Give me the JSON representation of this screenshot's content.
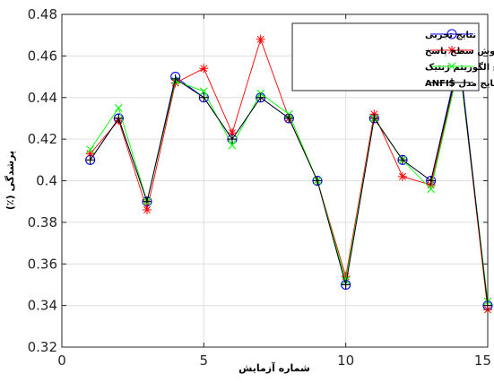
{
  "chart_data": {
    "type": "line",
    "title": "",
    "xlabel": "شماره آزمایش",
    "ylabel": "پرشدگی (٪)",
    "xlim": [
      0,
      15
    ],
    "ylim": [
      0.32,
      0.48
    ],
    "grid": true,
    "legend_position": "top-right",
    "x": [
      1,
      2,
      3,
      4,
      5,
      6,
      7,
      8,
      9,
      10,
      11,
      12,
      13,
      14,
      15
    ],
    "xticks": [
      0,
      5,
      10,
      15
    ],
    "yticks": [
      0.32,
      0.34,
      0.36,
      0.38,
      0.4,
      0.42,
      0.44,
      0.46,
      0.48
    ],
    "xtick_labels": [
      "0",
      "5",
      "10",
      "15"
    ],
    "ytick_labels": [
      "0.32",
      "0.34",
      "0.36",
      "0.38",
      "0.4",
      "0.42",
      "0.44",
      "0.46",
      "0.48"
    ],
    "series": [
      {
        "name": "نتایج تجربی",
        "color": "#0000ff",
        "marker": "circle",
        "values": [
          0.41,
          0.43,
          0.39,
          0.45,
          0.44,
          0.42,
          0.44,
          0.43,
          0.4,
          0.35,
          0.43,
          0.41,
          0.4,
          0.46,
          0.34
        ]
      },
      {
        "name": "نتایج روش سطح پاسخ",
        "color": "#ff0000",
        "marker": "asterisk",
        "values": [
          0.413,
          0.429,
          0.386,
          0.447,
          0.454,
          0.423,
          0.468,
          0.43,
          0.4,
          0.354,
          0.432,
          0.402,
          0.398,
          0.457,
          0.338
        ]
      },
      {
        "name": "نتایج الگوریتم ژنتیک",
        "color": "#00ff00",
        "marker": "x",
        "values": [
          0.415,
          0.435,
          0.39,
          0.448,
          0.443,
          0.417,
          0.442,
          0.432,
          0.4,
          0.352,
          0.43,
          0.41,
          0.396,
          0.456,
          0.342
        ]
      },
      {
        "name": "نتایج مدل ANFIS",
        "color": "#000000",
        "marker": "plus",
        "values": [
          0.41,
          0.43,
          0.39,
          0.449,
          0.44,
          0.42,
          0.44,
          0.43,
          0.4,
          0.35,
          0.43,
          0.41,
          0.4,
          0.458,
          0.34
        ]
      }
    ]
  }
}
